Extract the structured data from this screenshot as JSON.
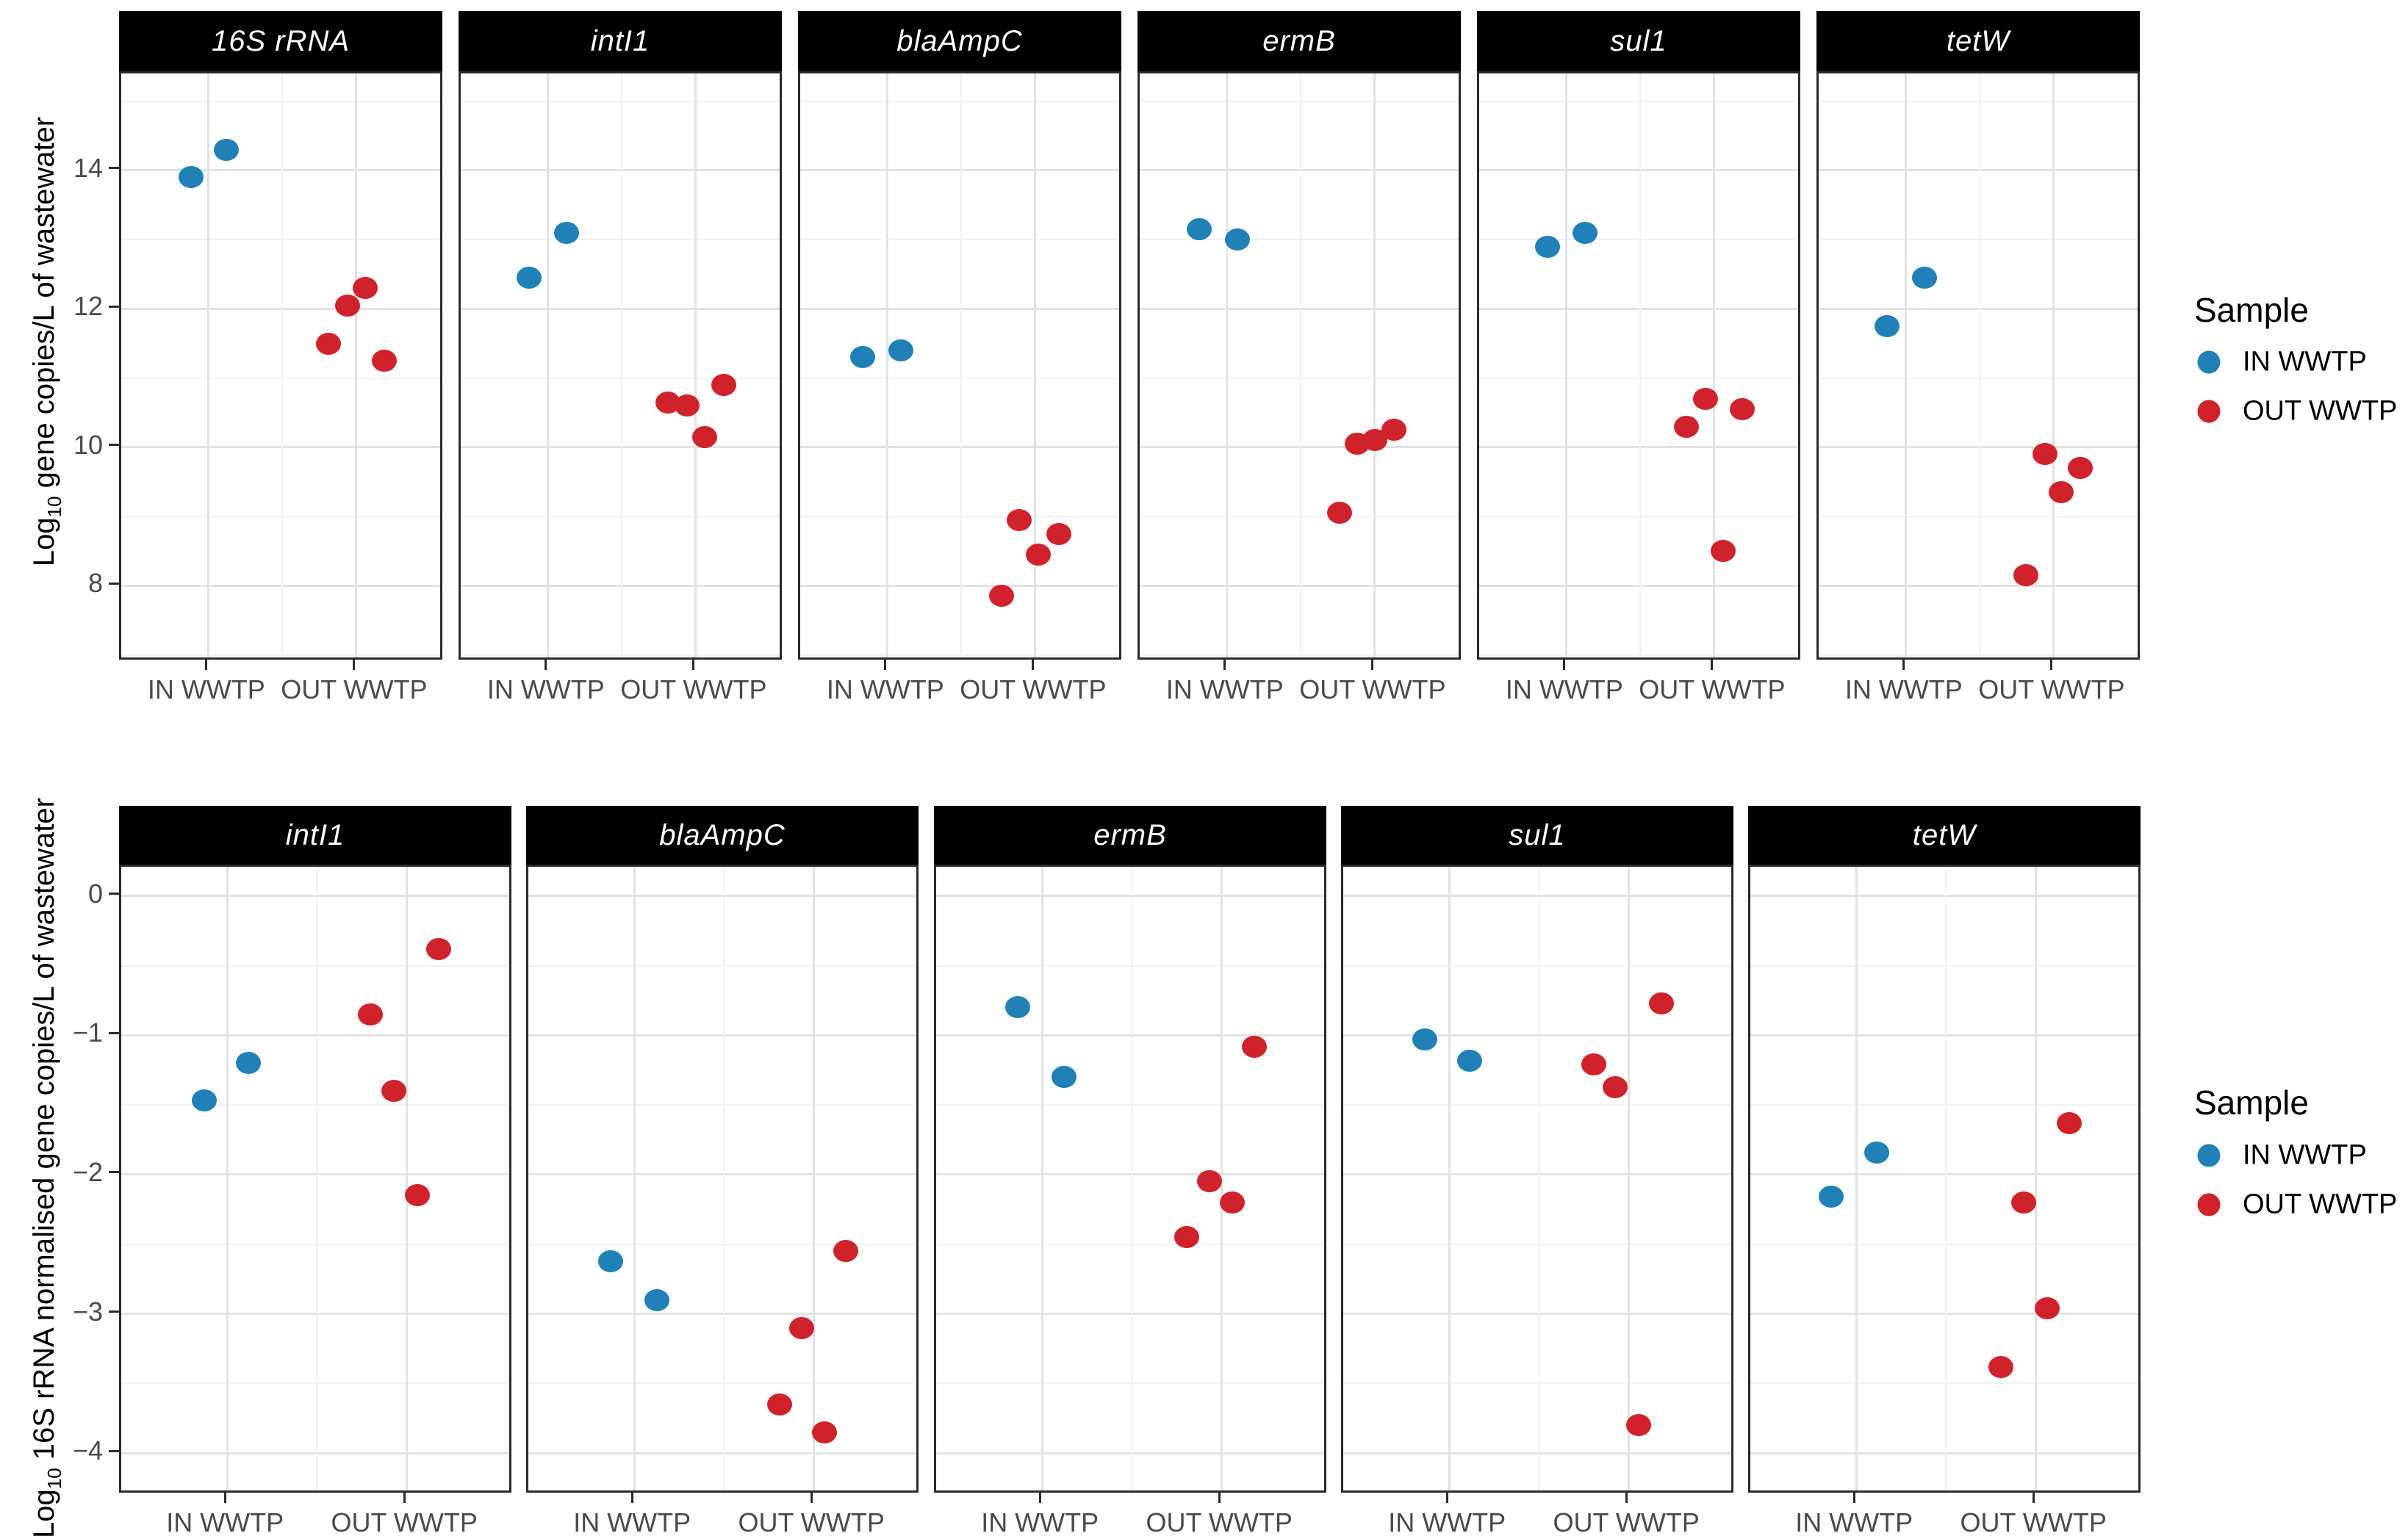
{
  "legend": {
    "title": "Sample",
    "entries": [
      {
        "label": "IN WWTP",
        "color": "#1F81B7"
      },
      {
        "label": "OUT WWTP",
        "color": "#D0222A"
      }
    ]
  },
  "chart_data": [
    {
      "type": "scatter",
      "facet_row": "gene copies per litre",
      "ylabel": {
        "pre": "Log",
        "sub": "10",
        "post": " gene copies/L of wastewater"
      },
      "ylim": [
        6.9,
        15.4
      ],
      "grid": "on",
      "legend_position": "right",
      "yticks": [
        {
          "v": 14,
          "label": "14"
        },
        {
          "v": 12,
          "label": "12"
        },
        {
          "v": 10,
          "label": "10"
        },
        {
          "v": 8,
          "label": "8"
        }
      ],
      "yminor": [
        15,
        13,
        11,
        9,
        7
      ],
      "categories": [
        "IN WWTP",
        "OUT WWTP"
      ],
      "facets": [
        {
          "title": "16S rRNA",
          "points": [
            {
              "sample": "IN WWTP",
              "value": 13.9,
              "jitter": -0.12
            },
            {
              "sample": "IN WWTP",
              "value": 14.3,
              "jitter": 0.12
            },
            {
              "sample": "OUT WWTP",
              "value": 11.5,
              "jitter": -0.19
            },
            {
              "sample": "OUT WWTP",
              "value": 12.05,
              "jitter": -0.06
            },
            {
              "sample": "OUT WWTP",
              "value": 12.3,
              "jitter": 0.06
            },
            {
              "sample": "OUT WWTP",
              "value": 11.25,
              "jitter": 0.19
            }
          ]
        },
        {
          "title": "intI1",
          "points": [
            {
              "sample": "IN WWTP",
              "value": 12.45,
              "jitter": -0.13
            },
            {
              "sample": "IN WWTP",
              "value": 13.1,
              "jitter": 0.125
            },
            {
              "sample": "OUT WWTP",
              "value": 10.65,
              "jitter": -0.19
            },
            {
              "sample": "OUT WWTP",
              "value": 10.6,
              "jitter": -0.06
            },
            {
              "sample": "OUT WWTP",
              "value": 10.9,
              "jitter": 0.19
            },
            {
              "sample": "OUT WWTP",
              "value": 10.15,
              "jitter": 0.06
            }
          ]
        },
        {
          "title": "blaAmpC",
          "points": [
            {
              "sample": "IN WWTP",
              "value": 11.3,
              "jitter": -0.17
            },
            {
              "sample": "IN WWTP",
              "value": 11.4,
              "jitter": 0.09
            },
            {
              "sample": "OUT WWTP",
              "value": 8.95,
              "jitter": -0.11
            },
            {
              "sample": "OUT WWTP",
              "value": 8.75,
              "jitter": 0.16
            },
            {
              "sample": "OUT WWTP",
              "value": 8.45,
              "jitter": 0.02
            },
            {
              "sample": "OUT WWTP",
              "value": 7.85,
              "jitter": -0.23
            }
          ]
        },
        {
          "title": "ermB",
          "points": [
            {
              "sample": "IN WWTP",
              "value": 13.15,
              "jitter": -0.19
            },
            {
              "sample": "IN WWTP",
              "value": 13.0,
              "jitter": 0.07
            },
            {
              "sample": "OUT WWTP",
              "value": 10.05,
              "jitter": -0.12
            },
            {
              "sample": "OUT WWTP",
              "value": 10.1,
              "jitter": 0.0
            },
            {
              "sample": "OUT WWTP",
              "value": 10.25,
              "jitter": 0.13
            },
            {
              "sample": "OUT WWTP",
              "value": 9.05,
              "jitter": -0.24
            }
          ]
        },
        {
          "title": "sul1",
          "points": [
            {
              "sample": "IN WWTP",
              "value": 12.9,
              "jitter": -0.13
            },
            {
              "sample": "IN WWTP",
              "value": 13.1,
              "jitter": 0.125
            },
            {
              "sample": "OUT WWTP",
              "value": 10.3,
              "jitter": -0.19
            },
            {
              "sample": "OUT WWTP",
              "value": 10.7,
              "jitter": -0.06
            },
            {
              "sample": "OUT WWTP",
              "value": 10.55,
              "jitter": 0.19
            },
            {
              "sample": "OUT WWTP",
              "value": 8.5,
              "jitter": 0.06
            }
          ]
        },
        {
          "title": "tetW",
          "points": [
            {
              "sample": "IN WWTP",
              "value": 11.75,
              "jitter": -0.13
            },
            {
              "sample": "IN WWTP",
              "value": 12.45,
              "jitter": 0.125
            },
            {
              "sample": "OUT WWTP",
              "value": 9.9,
              "jitter": -0.06
            },
            {
              "sample": "OUT WWTP",
              "value": 9.7,
              "jitter": 0.18
            },
            {
              "sample": "OUT WWTP",
              "value": 9.35,
              "jitter": 0.05
            },
            {
              "sample": "OUT WWTP",
              "value": 8.15,
              "jitter": -0.19
            }
          ]
        }
      ]
    },
    {
      "type": "scatter",
      "facet_row": "16S rRNA normalised",
      "ylabel": {
        "pre": "Log",
        "sub": "10",
        "post": " 16S rRNA normalised gene copies/L of wastewater"
      },
      "ylim": [
        -4.3,
        0.21
      ],
      "grid": "on",
      "legend_position": "right",
      "yticks": [
        {
          "v": 0,
          "label": "0"
        },
        {
          "v": -1,
          "label": "−1"
        },
        {
          "v": -2,
          "label": "−2"
        },
        {
          "v": -3,
          "label": "−3"
        },
        {
          "v": -4,
          "label": "−4"
        }
      ],
      "yminor": [
        -0.5,
        -1.5,
        -2.5,
        -3.5
      ],
      "categories": [
        "IN WWTP",
        "OUT WWTP"
      ],
      "facets": [
        {
          "title": "intI1",
          "points": [
            {
              "sample": "IN WWTP",
              "value": -1.47,
              "jitter": -0.126
            },
            {
              "sample": "IN WWTP",
              "value": -1.2,
              "jitter": 0.12
            },
            {
              "sample": "OUT WWTP",
              "value": -0.85,
              "jitter": -0.2
            },
            {
              "sample": "OUT WWTP",
              "value": -0.38,
              "jitter": 0.18
            },
            {
              "sample": "OUT WWTP",
              "value": -1.4,
              "jitter": -0.07
            },
            {
              "sample": "OUT WWTP",
              "value": -2.15,
              "jitter": 0.06
            }
          ]
        },
        {
          "title": "blaAmpC",
          "points": [
            {
              "sample": "IN WWTP",
              "value": -2.62,
              "jitter": -0.13
            },
            {
              "sample": "IN WWTP",
              "value": -2.9,
              "jitter": 0.126
            },
            {
              "sample": "OUT WWTP",
              "value": -2.55,
              "jitter": 0.18
            },
            {
              "sample": "OUT WWTP",
              "value": -3.1,
              "jitter": -0.065
            },
            {
              "sample": "OUT WWTP",
              "value": -3.65,
              "jitter": -0.19
            },
            {
              "sample": "OUT WWTP",
              "value": -3.85,
              "jitter": 0.06
            }
          ]
        },
        {
          "title": "ermB",
          "points": [
            {
              "sample": "IN WWTP",
              "value": -0.8,
              "jitter": -0.134
            },
            {
              "sample": "IN WWTP",
              "value": -1.3,
              "jitter": 0.124
            },
            {
              "sample": "OUT WWTP",
              "value": -1.08,
              "jitter": 0.184
            },
            {
              "sample": "OUT WWTP",
              "value": -2.05,
              "jitter": -0.068
            },
            {
              "sample": "OUT WWTP",
              "value": -2.2,
              "jitter": 0.06
            },
            {
              "sample": "OUT WWTP",
              "value": -2.45,
              "jitter": -0.194
            }
          ]
        },
        {
          "title": "sul1",
          "points": [
            {
              "sample": "IN WWTP",
              "value": -1.03,
              "jitter": -0.134
            },
            {
              "sample": "IN WWTP",
              "value": -1.18,
              "jitter": 0.115
            },
            {
              "sample": "OUT WWTP",
              "value": -0.77,
              "jitter": 0.182
            },
            {
              "sample": "OUT WWTP",
              "value": -1.21,
              "jitter": -0.194
            },
            {
              "sample": "OUT WWTP",
              "value": -1.37,
              "jitter": -0.073
            },
            {
              "sample": "OUT WWTP",
              "value": -3.8,
              "jitter": 0.055
            }
          ]
        },
        {
          "title": "tetW",
          "points": [
            {
              "sample": "IN WWTP",
              "value": -1.84,
              "jitter": 0.116
            },
            {
              "sample": "IN WWTP",
              "value": -2.16,
              "jitter": -0.14
            },
            {
              "sample": "OUT WWTP",
              "value": -1.63,
              "jitter": 0.187
            },
            {
              "sample": "OUT WWTP",
              "value": -2.2,
              "jitter": -0.067
            },
            {
              "sample": "OUT WWTP",
              "value": -2.96,
              "jitter": 0.063
            },
            {
              "sample": "OUT WWTP",
              "value": -3.38,
              "jitter": -0.194
            }
          ]
        }
      ]
    }
  ]
}
